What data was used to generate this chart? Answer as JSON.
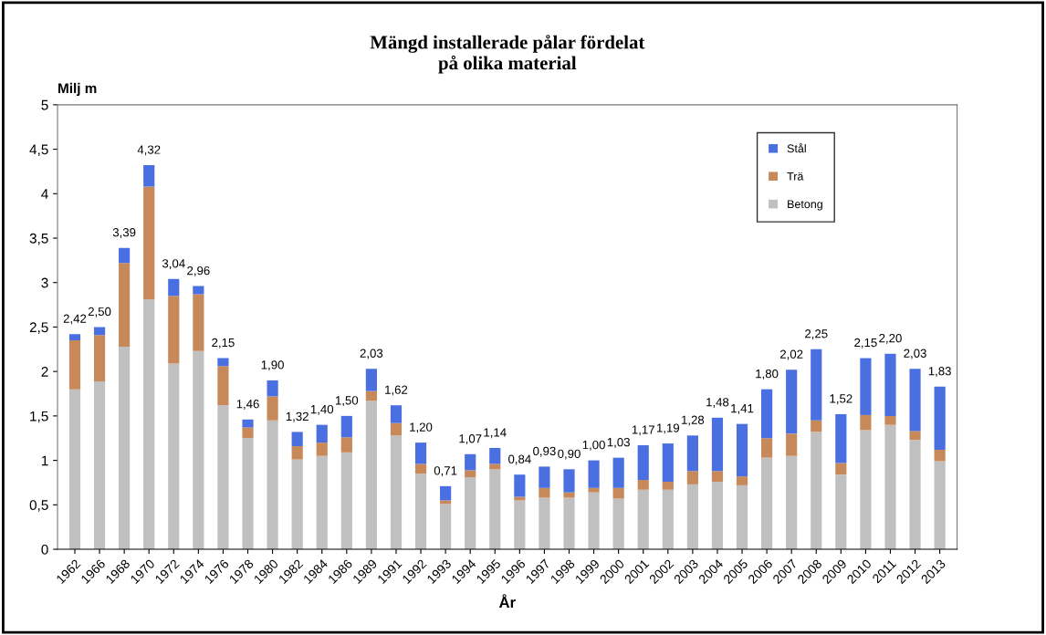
{
  "chart_data": {
    "type": "bar",
    "stacked": true,
    "title": "Mängd installerade pålar fördelat\npå olika material",
    "ylabel": "Milj m",
    "xlabel": "År",
    "categories": [
      "1962",
      "1966",
      "1968",
      "1970",
      "1972",
      "1974",
      "1976",
      "1978",
      "1980",
      "1982",
      "1984",
      "1986",
      "1989",
      "1991",
      "1992",
      "1993",
      "1994",
      "1995",
      "1996",
      "1997",
      "1998",
      "1999",
      "2000",
      "2001",
      "2002",
      "2003",
      "2004",
      "2005",
      "2006",
      "2007",
      "2008",
      "2009",
      "2010",
      "2011",
      "2012",
      "2013"
    ],
    "series": [
      {
        "name": "Betong",
        "color": "#c0c0c0",
        "values": [
          1.8,
          1.89,
          2.28,
          2.81,
          2.09,
          2.23,
          1.62,
          1.25,
          1.45,
          1.01,
          1.05,
          1.09,
          1.67,
          1.28,
          0.85,
          0.51,
          0.81,
          0.9,
          0.55,
          0.58,
          0.58,
          0.64,
          0.57,
          0.67,
          0.67,
          0.73,
          0.76,
          0.72,
          1.03,
          1.05,
          1.32,
          0.84,
          1.34,
          1.4,
          1.23,
          0.99
        ]
      },
      {
        "name": "Trä",
        "color": "#c8895a",
        "values": [
          0.55,
          0.52,
          0.94,
          1.27,
          0.76,
          0.64,
          0.44,
          0.12,
          0.27,
          0.15,
          0.15,
          0.17,
          0.11,
          0.14,
          0.11,
          0.04,
          0.08,
          0.06,
          0.04,
          0.11,
          0.06,
          0.05,
          0.12,
          0.11,
          0.09,
          0.15,
          0.12,
          0.1,
          0.22,
          0.25,
          0.13,
          0.13,
          0.17,
          0.1,
          0.1,
          0.13
        ]
      },
      {
        "name": "Stål",
        "color": "#4a6fe0",
        "values": [
          0.07,
          0.09,
          0.17,
          0.24,
          0.19,
          0.09,
          0.09,
          0.09,
          0.18,
          0.16,
          0.2,
          0.24,
          0.25,
          0.2,
          0.24,
          0.16,
          0.18,
          0.18,
          0.25,
          0.24,
          0.26,
          0.31,
          0.34,
          0.39,
          0.43,
          0.4,
          0.6,
          0.59,
          0.55,
          0.72,
          0.8,
          0.55,
          0.64,
          0.7,
          0.7,
          0.71
        ]
      }
    ],
    "totals": [
      "2,42",
      "2,50",
      "3,39",
      "4,32",
      "3,04",
      "2,96",
      "2,15",
      "1,46",
      "1,90",
      "1,32",
      "1,40",
      "1,50",
      "2,03",
      "1,62",
      "1,20",
      "0,71",
      "1,07",
      "1,14",
      "0,84",
      "0,93",
      "0,90",
      "1,00",
      "1,03",
      "1,17",
      "1,19",
      "1,28",
      "1,48",
      "1,41",
      "1,80",
      "2,02",
      "2,25",
      "1,52",
      "2,15",
      "2,20",
      "2,03",
      "1,83"
    ],
    "ylim": [
      0,
      5
    ],
    "yticks": [
      0,
      {
        "value": 0.5,
        "label": "0,5"
      },
      1,
      {
        "value": 1.5,
        "label": "1,5"
      },
      2,
      {
        "value": 2.5,
        "label": "2,5"
      },
      3,
      {
        "value": 3.5,
        "label": "3,5"
      },
      4,
      {
        "value": 4.5,
        "label": "4,5"
      },
      5
    ],
    "grid": false,
    "legend": "top right"
  }
}
